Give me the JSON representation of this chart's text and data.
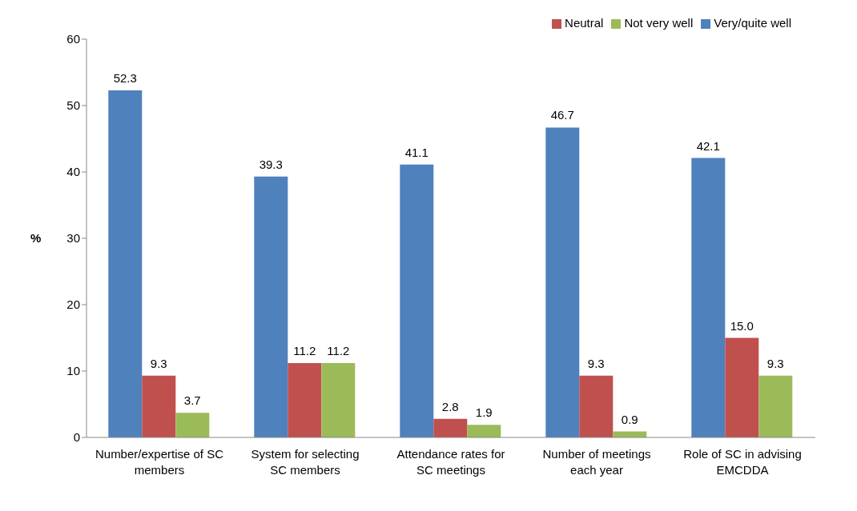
{
  "chart_data": {
    "type": "bar",
    "ylabel": "%",
    "categories": [
      "Number/expertise of SC members",
      "System for selecting SC members",
      "Attendance rates for SC meetings",
      "Number of meetings each year",
      "Role of SC in advising EMCDDA"
    ],
    "series": [
      {
        "name": "Very/quite well",
        "color": "#4f81bd",
        "values": [
          52.3,
          39.3,
          41.1,
          46.7,
          42.1
        ],
        "value_labels": [
          "52.3",
          "39.3",
          "41.1",
          "46.7",
          "42.1"
        ]
      },
      {
        "name": "Neutral",
        "color": "#c0504d",
        "values": [
          9.3,
          11.2,
          2.8,
          9.3,
          15.0
        ],
        "value_labels": [
          "9.3",
          "11.2",
          "2.8",
          "9.3",
          "15.0"
        ]
      },
      {
        "name": "Not very well",
        "color": "#9bbb59",
        "values": [
          3.7,
          11.2,
          1.9,
          0.9,
          9.3
        ],
        "value_labels": [
          "3.7",
          "11.2",
          "1.9",
          "0.9",
          "9.3"
        ]
      }
    ],
    "ylim": [
      0,
      60
    ],
    "yticks": [
      0,
      10,
      20,
      30,
      40,
      50,
      60
    ],
    "grid": false,
    "legend": "top right"
  }
}
